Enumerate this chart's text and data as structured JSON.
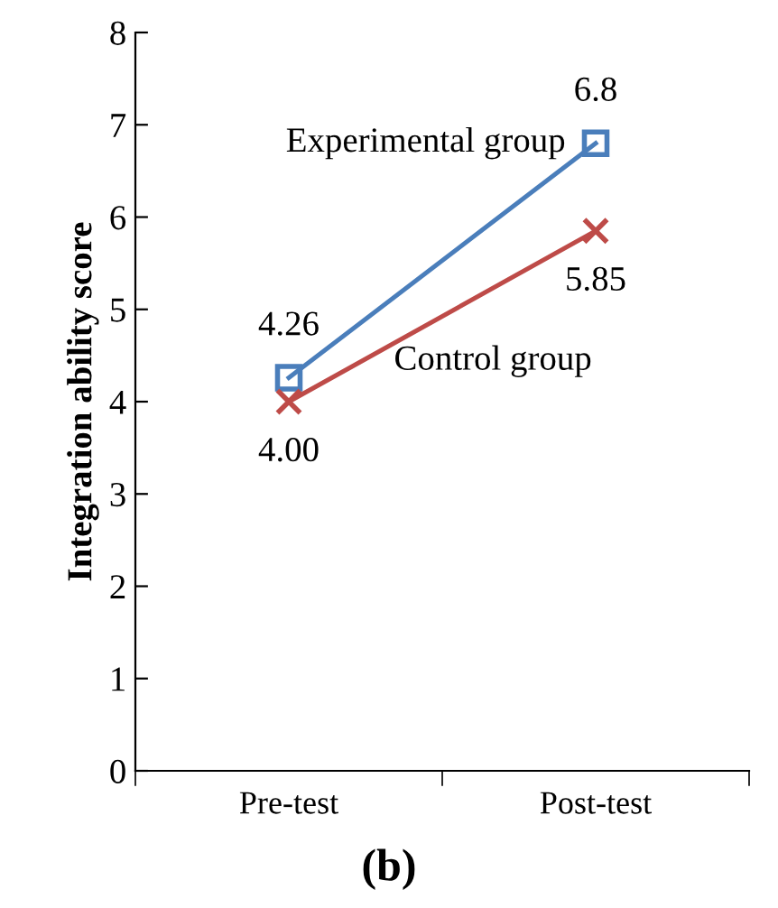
{
  "chart_data": {
    "type": "line",
    "ylabel": "Integration ability score",
    "categories": [
      "Pre-test",
      "Post-test"
    ],
    "series": [
      {
        "name": "Experimental group",
        "color": "#4a7ebb",
        "marker": "square",
        "values": [
          4.26,
          6.8
        ],
        "value_labels": [
          "4.26",
          "6.8"
        ]
      },
      {
        "name": "Control group",
        "color": "#be4b48",
        "marker": "cross",
        "values": [
          4.0,
          5.85
        ],
        "value_labels": [
          "4.00",
          "5.85"
        ]
      }
    ],
    "ylim": [
      0,
      8
    ],
    "yticks": [
      0,
      1,
      2,
      3,
      4,
      5,
      6,
      7,
      8
    ],
    "grid": false,
    "legend": false,
    "annotations": [
      "(b)"
    ]
  }
}
